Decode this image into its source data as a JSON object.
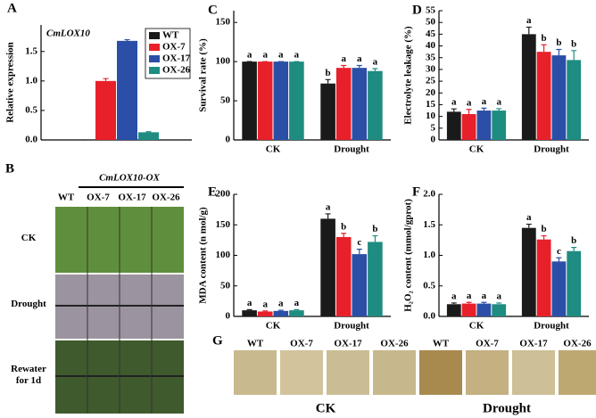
{
  "chart_data": [
    {
      "type": "bar",
      "panel": "A",
      "title": "CmLOX10",
      "y_label": "Relative expression",
      "categories": [
        null
      ],
      "series": [
        {
          "name": "WT",
          "color": "#1a1a1a",
          "values": [
            0
          ],
          "errors": [
            0
          ]
        },
        {
          "name": "OX-7",
          "color": "#e8202a",
          "values": [
            1.0
          ],
          "errors": [
            0.04
          ]
        },
        {
          "name": "OX-17",
          "color": "#2b4fa6",
          "values": [
            1.68
          ],
          "errors": [
            0.02
          ]
        },
        {
          "name": "OX-26",
          "color": "#1e8c80",
          "values": [
            0.13
          ],
          "errors": [
            0.01
          ]
        }
      ],
      "ylim": [
        0,
        1.95
      ],
      "yticks": [
        {
          "value": 0,
          "label": "0.0"
        },
        {
          "value": 0.5,
          "label": "0.5"
        },
        {
          "value": 1,
          "label": "1.0"
        },
        {
          "value": 1.5,
          "label": "1.5"
        }
      ],
      "legend": "upper right"
    },
    {
      "type": "bar",
      "panel": "C",
      "y_label": "Survival rate (%)",
      "categories": [
        "CK",
        "Drought"
      ],
      "series": [
        {
          "color": "#1a1a1a",
          "values": [
            100,
            72
          ],
          "errors": [
            0,
            5
          ],
          "labels": [
            "a",
            "b"
          ]
        },
        {
          "color": "#e8202a",
          "values": [
            100,
            92
          ],
          "errors": [
            0,
            3
          ],
          "labels": [
            "a",
            "a"
          ]
        },
        {
          "color": "#2b4fa6",
          "values": [
            100,
            92
          ],
          "errors": [
            0,
            3
          ],
          "labels": [
            "a",
            "a"
          ]
        },
        {
          "color": "#1e8c80",
          "values": [
            100,
            88
          ],
          "errors": [
            0,
            3
          ],
          "labels": [
            "a",
            "a"
          ]
        }
      ],
      "ylim": [
        0,
        165
      ],
      "yticks": [
        0,
        50,
        100,
        150
      ]
    },
    {
      "type": "bar",
      "panel": "D",
      "y_label": "Electrolyte leakage (%)",
      "categories": [
        "CK",
        "Drought"
      ],
      "series": [
        {
          "color": "#1a1a1a",
          "values": [
            12,
            45
          ],
          "errors": [
            1.2,
            3
          ],
          "labels": [
            "a",
            "a"
          ]
        },
        {
          "color": "#e8202a",
          "values": [
            11,
            37.5
          ],
          "errors": [
            2,
            3
          ],
          "labels": [
            "a",
            "b"
          ]
        },
        {
          "color": "#2b4fa6",
          "values": [
            12.5,
            36
          ],
          "errors": [
            1,
            2.5
          ],
          "labels": [
            "a",
            "b"
          ]
        },
        {
          "color": "#1e8c80",
          "values": [
            12.5,
            34
          ],
          "errors": [
            0.8,
            4
          ],
          "labels": [
            "a",
            "b"
          ]
        }
      ],
      "ylim": [
        0,
        55
      ],
      "yticks": [
        0,
        5,
        10,
        15,
        20,
        25,
        30,
        35,
        40,
        45,
        50,
        55
      ]
    },
    {
      "type": "bar",
      "panel": "E",
      "y_label": "MDA content (n mol/g)",
      "categories": [
        "CK",
        "Drought"
      ],
      "series": [
        {
          "color": "#1a1a1a",
          "values": [
            10,
            160
          ],
          "errors": [
            1,
            8
          ],
          "labels": [
            "a",
            "a"
          ]
        },
        {
          "color": "#e8202a",
          "values": [
            8,
            130
          ],
          "errors": [
            1,
            6
          ],
          "labels": [
            "a",
            "b"
          ]
        },
        {
          "color": "#2b4fa6",
          "values": [
            9,
            102
          ],
          "errors": [
            1,
            8
          ],
          "labels": [
            "a",
            "c"
          ]
        },
        {
          "color": "#1e8c80",
          "values": [
            10,
            122
          ],
          "errors": [
            1,
            10
          ],
          "labels": [
            "a",
            "b"
          ]
        }
      ],
      "ylim": [
        0,
        200
      ],
      "yticks": [
        0,
        50,
        100,
        150,
        200
      ]
    },
    {
      "type": "bar",
      "panel": "F",
      "y_label": "H₂O₂ content (mmol/gprot)",
      "categories": [
        "CK",
        "Drought"
      ],
      "series": [
        {
          "color": "#1a1a1a",
          "values": [
            0.2,
            1.45
          ],
          "errors": [
            0.02,
            0.06
          ],
          "labels": [
            "a",
            "a"
          ]
        },
        {
          "color": "#e8202a",
          "values": [
            0.21,
            1.26
          ],
          "errors": [
            0.02,
            0.06
          ],
          "labels": [
            "a",
            "b"
          ]
        },
        {
          "color": "#2b4fa6",
          "values": [
            0.21,
            0.9
          ],
          "errors": [
            0.02,
            0.06
          ],
          "labels": [
            "a",
            "c"
          ]
        },
        {
          "color": "#1e8c80",
          "values": [
            0.2,
            1.07
          ],
          "errors": [
            0.02,
            0.06
          ],
          "labels": [
            "a",
            "b"
          ]
        }
      ],
      "ylim": [
        0,
        2.0
      ],
      "yticks": [
        {
          "value": 0,
          "label": "0.0"
        },
        {
          "value": 0.5,
          "label": "0.5"
        },
        {
          "value": 1,
          "label": "1.0"
        },
        {
          "value": 1.5,
          "label": "1.5"
        },
        {
          "value": 2,
          "label": "2.0"
        }
      ]
    }
  ],
  "photo_b": {
    "panel": "B",
    "group": "CmLOX10-OX",
    "columns": [
      "WT",
      "OX-7",
      "OX-17",
      "OX-26"
    ],
    "rows": [
      "CK",
      "Drought",
      "Rewater for 1d"
    ]
  },
  "photo_g": {
    "panel": "G",
    "columns": [
      "WT",
      "OX-7",
      "OX-17",
      "OX-26",
      "WT",
      "OX-7",
      "OX-17",
      "OX-26"
    ],
    "groups": [
      "CK",
      "Drought"
    ]
  }
}
